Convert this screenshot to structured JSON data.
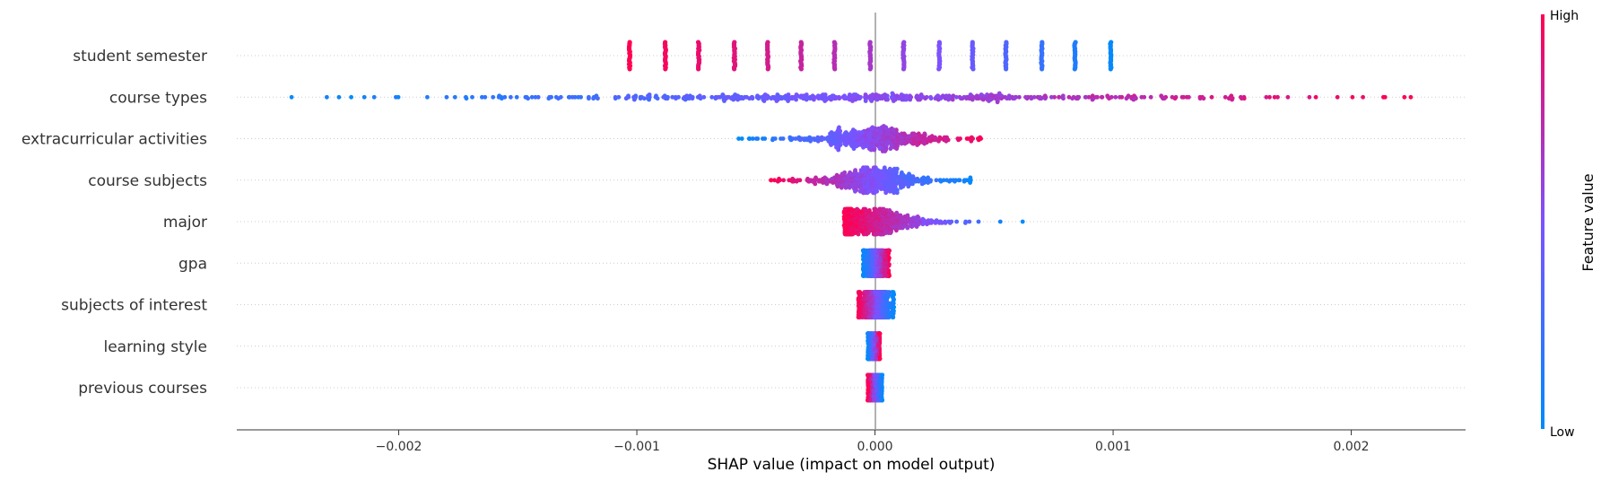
{
  "chart_data": {
    "type": "scatter",
    "subtype": "shap-beeswarm",
    "title": "",
    "xlabel": "SHAP value (impact on model output)",
    "ylabel": "",
    "xlim": [
      -0.00268,
      0.00248
    ],
    "x_ticks": [
      -0.002,
      -0.001,
      0.0,
      0.001,
      0.002
    ],
    "x_tick_labels": [
      "−0.002",
      "−0.001",
      "0.000",
      "0.001",
      "0.002"
    ],
    "zero_line": true,
    "row_gridlines": "dotted",
    "features": [
      "student semester",
      "course types",
      "extracurricular activities",
      "course subjects",
      "major",
      "gpa",
      "subjects of interest",
      "learning style",
      "previous courses"
    ],
    "colorbar": {
      "title": "Feature value",
      "high_label": "High",
      "low_label": "Low",
      "low_color": "#008bfb",
      "mid_color": "#7c52ff",
      "high_color": "#ff0051",
      "placement": "right"
    },
    "series": [
      {
        "feature": "student semester",
        "clusters": [
          {
            "x": -0.00103,
            "value": 1.0
          },
          {
            "x": -0.00088,
            "value": 0.96
          },
          {
            "x": -0.00074,
            "value": 0.92
          },
          {
            "x": -0.00059,
            "value": 0.88
          },
          {
            "x": -0.00045,
            "value": 0.83
          },
          {
            "x": -0.00031,
            "value": 0.78
          },
          {
            "x": -0.00017,
            "value": 0.72
          },
          {
            "x": -2e-05,
            "value": 0.66
          },
          {
            "x": 0.00012,
            "value": 0.58
          },
          {
            "x": 0.00027,
            "value": 0.5
          },
          {
            "x": 0.00041,
            "value": 0.42
          },
          {
            "x": 0.00055,
            "value": 0.32
          },
          {
            "x": 0.0007,
            "value": 0.22
          },
          {
            "x": 0.00084,
            "value": 0.12
          },
          {
            "x": 0.00099,
            "value": 0.02
          }
        ]
      },
      {
        "feature": "course types",
        "range": [
          -0.00245,
          0.00225
        ],
        "low_side": "negative",
        "outliers": [
          -0.00245,
          -0.00188,
          -0.00144,
          -0.00137,
          -0.00127,
          -0.00117,
          -0.00109,
          0.00126,
          0.00138,
          0.00225
        ]
      },
      {
        "feature": "extracurricular activities",
        "range": [
          -0.00061,
          0.00045
        ],
        "low_side": "negative"
      },
      {
        "feature": "course subjects",
        "range": [
          -0.00044,
          0.00041
        ],
        "low_side": "positive"
      },
      {
        "feature": "major",
        "range": [
          -0.00013,
          0.00062
        ],
        "low_side": "positive",
        "outliers": [
          0.00062
        ]
      },
      {
        "feature": "gpa",
        "range": [
          -5e-05,
          6e-05
        ],
        "low_side": "negative"
      },
      {
        "feature": "subjects of interest",
        "range": [
          -7e-05,
          8e-05
        ],
        "low_side": "positive"
      },
      {
        "feature": "learning style",
        "range": [
          -3e-05,
          2e-05
        ],
        "low_side": "negative"
      },
      {
        "feature": "previous courses",
        "range": [
          -3e-05,
          3e-05
        ],
        "low_side": "positive"
      }
    ]
  }
}
